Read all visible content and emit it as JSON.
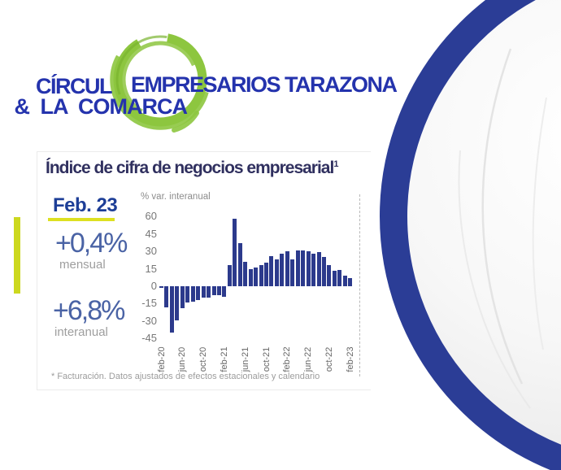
{
  "logo": {
    "prefix": "CÍRCUL",
    "line1": "EMPRESARIOS TARAZONA",
    "line2": "& LA COMARCA",
    "text_color": "#2433ad",
    "circle_color": "#8dc63f"
  },
  "accent_bar_color": "#ccd81f",
  "card": {
    "title": "Índice de cifra de negocios empresarial",
    "title_superscript": "1",
    "period_label": "Feb. 23",
    "period_underline_color": "#dde021",
    "stats": [
      {
        "value": "+0,4%",
        "label": "mensual"
      },
      {
        "value": "+6,8%",
        "label": "interanual"
      }
    ],
    "footnote": "* Facturación. Datos ajustados de efectos estacionales y calendario"
  },
  "chart_data": {
    "type": "bar",
    "title": "% var. interanual",
    "ylabel": "% var. interanual",
    "xlabel": "",
    "grid": false,
    "legend": null,
    "ylim": [
      -45,
      65
    ],
    "yticks": [
      60,
      45,
      30,
      15,
      0,
      -15,
      -30,
      -45
    ],
    "xtick_labels": [
      "feb-20",
      "jun-20",
      "oct-20",
      "feb-21",
      "jun-21",
      "oct-21",
      "feb-22",
      "jun-22",
      "oct-22",
      "feb-23"
    ],
    "x": [
      "feb-20",
      "mar-20",
      "abr-20",
      "may-20",
      "jun-20",
      "jul-20",
      "ago-20",
      "sep-20",
      "oct-20",
      "nov-20",
      "dic-20",
      "ene-21",
      "feb-21",
      "mar-21",
      "abr-21",
      "may-21",
      "jun-21",
      "jul-21",
      "ago-21",
      "sep-21",
      "oct-21",
      "nov-21",
      "dic-21",
      "ene-22",
      "feb-22",
      "mar-22",
      "abr-22",
      "may-22",
      "jun-22",
      "jul-22",
      "ago-22",
      "sep-22",
      "oct-22",
      "nov-22",
      "dic-22",
      "ene-23",
      "feb-23"
    ],
    "values": [
      -1,
      -18,
      -40,
      -29,
      -19,
      -14,
      -13,
      -12,
      -10,
      -10,
      -8,
      -8,
      -9,
      18,
      58,
      37,
      21,
      15,
      16,
      18,
      20,
      26,
      23,
      28,
      30,
      23,
      31,
      31,
      30,
      28,
      29,
      25,
      18,
      13,
      14,
      9,
      7
    ],
    "bar_color": "#2c3a8c"
  },
  "colors": {
    "balloon_arc_blue": "#2b3d96",
    "title_navy": "#30305f",
    "period_blue": "#1d3e97",
    "stat_blue": "#4a63a5",
    "label_grey": "#9e9e9e"
  }
}
